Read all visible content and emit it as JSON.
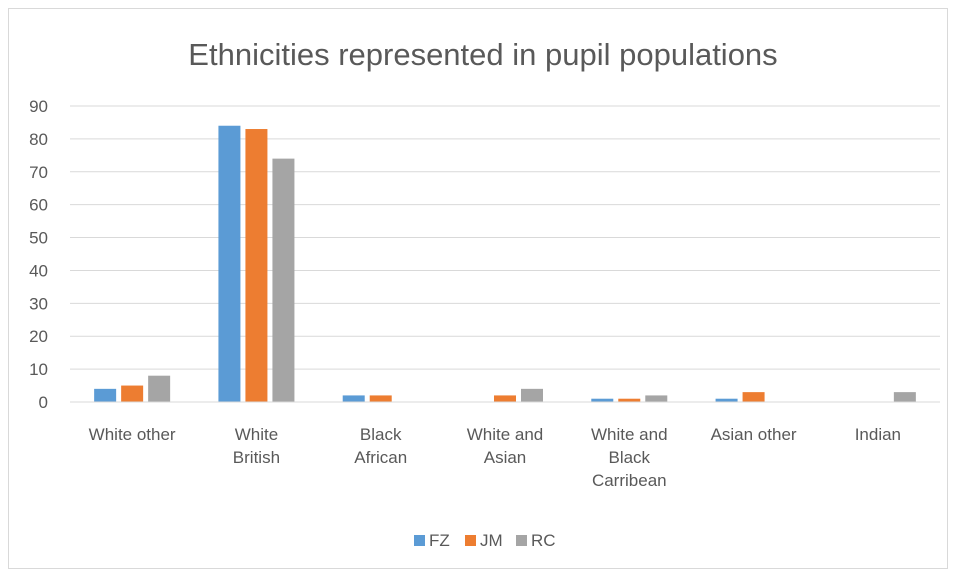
{
  "chart_data": {
    "type": "bar",
    "title": "Ethnicities represented in pupil populations",
    "xlabel": "",
    "ylabel": "",
    "categories": [
      "White other",
      "White British",
      "Black African",
      "White and Asian",
      "White and Black Carribean",
      "Asian other",
      "Indian"
    ],
    "category_lines": [
      [
        "White other"
      ],
      [
        "White",
        "British"
      ],
      [
        "Black",
        "African"
      ],
      [
        "White and",
        "Asian"
      ],
      [
        "White and",
        "Black",
        "Carribean"
      ],
      [
        "Asian other"
      ],
      [
        "Indian"
      ]
    ],
    "series": [
      {
        "name": "FZ",
        "color": "#5b9bd5",
        "values": [
          4,
          84,
          2,
          0,
          1,
          1,
          0
        ]
      },
      {
        "name": "JM",
        "color": "#ed7d31",
        "values": [
          5,
          83,
          2,
          2,
          1,
          3,
          0
        ]
      },
      {
        "name": "RC",
        "color": "#a5a5a5",
        "values": [
          8,
          74,
          0,
          4,
          2,
          0,
          3
        ]
      }
    ],
    "ylim": [
      0,
      90
    ],
    "yticks": [
      0,
      10,
      20,
      30,
      40,
      50,
      60,
      70,
      80,
      90
    ],
    "grid": true,
    "legend": "bottom"
  }
}
